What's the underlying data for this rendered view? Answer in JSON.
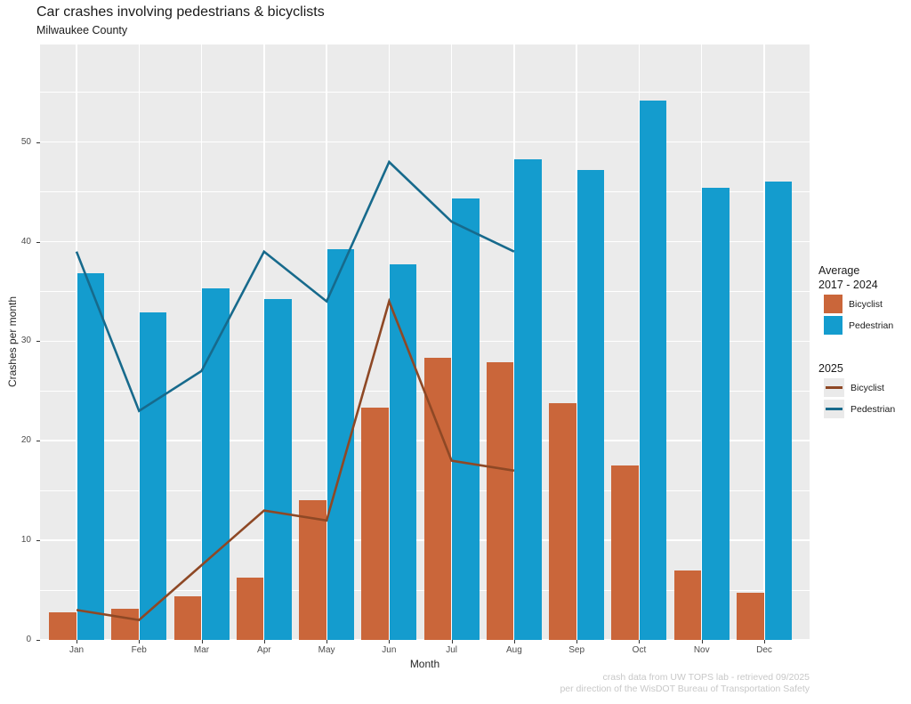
{
  "header": {
    "title": "Car crashes involving pedestrians & bicyclists",
    "subtitle": "Milwaukee County"
  },
  "axes": {
    "x_title": "Month",
    "y_title": "Crashes per month"
  },
  "caption": {
    "line1": "crash data from UW TOPS lab - retrieved 09/2025",
    "line2": "per direction of the WisDOT Bureau of Transportation Safety"
  },
  "legend": {
    "group1_title_line1": "Average",
    "group1_title_line2": "2017 - 2024",
    "group1_items": [
      {
        "label": "Bicyclist"
      },
      {
        "label": "Pedestrian"
      }
    ],
    "group2_title": "2025",
    "group2_items": [
      {
        "label": "Bicyclist"
      },
      {
        "label": "Pedestrian"
      }
    ]
  },
  "colors": {
    "bar_bicyclist": "#CA663A",
    "bar_pedestrian": "#149CCE",
    "line_bicyclist": "#8E4825",
    "line_pedestrian": "#176A8C",
    "panel_bg": "#EBEBEB",
    "gridline": "#FFFFFF"
  },
  "chart_data": {
    "type": "bar",
    "title": "Car crashes involving pedestrians & bicyclists",
    "subtitle": "Milwaukee County",
    "xlabel": "Month",
    "ylabel": "Crashes per month",
    "categories": [
      "Jan",
      "Feb",
      "Mar",
      "Apr",
      "May",
      "Jun",
      "Jul",
      "Aug",
      "Sep",
      "Oct",
      "Nov",
      "Dec"
    ],
    "ylim": [
      0,
      59.8
    ],
    "yticks": [
      0,
      10,
      20,
      30,
      40,
      50
    ],
    "grid": "on",
    "legend_position": "right",
    "series": [
      {
        "name": "Average 2017 - 2024 Bicyclist",
        "type": "bar",
        "color": "#CA663A",
        "values": [
          2.8,
          3.1,
          4.4,
          6.3,
          14.0,
          23.3,
          28.3,
          27.9,
          23.8,
          17.5,
          7.0,
          4.7
        ]
      },
      {
        "name": "Average 2017 - 2024 Pedestrian",
        "type": "bar",
        "color": "#149CCE",
        "values": [
          36.8,
          32.9,
          35.3,
          34.2,
          39.2,
          37.7,
          44.3,
          48.3,
          47.2,
          54.2,
          45.4,
          46.0
        ]
      },
      {
        "name": "2025 Bicyclist",
        "type": "line",
        "color": "#8E4825",
        "values": [
          3,
          2,
          7.5,
          13,
          12,
          34,
          18,
          17
        ]
      },
      {
        "name": "2025 Pedestrian",
        "type": "line",
        "color": "#176A8C",
        "values": [
          39,
          23,
          27,
          39,
          34,
          48,
          42,
          39
        ]
      }
    ]
  }
}
